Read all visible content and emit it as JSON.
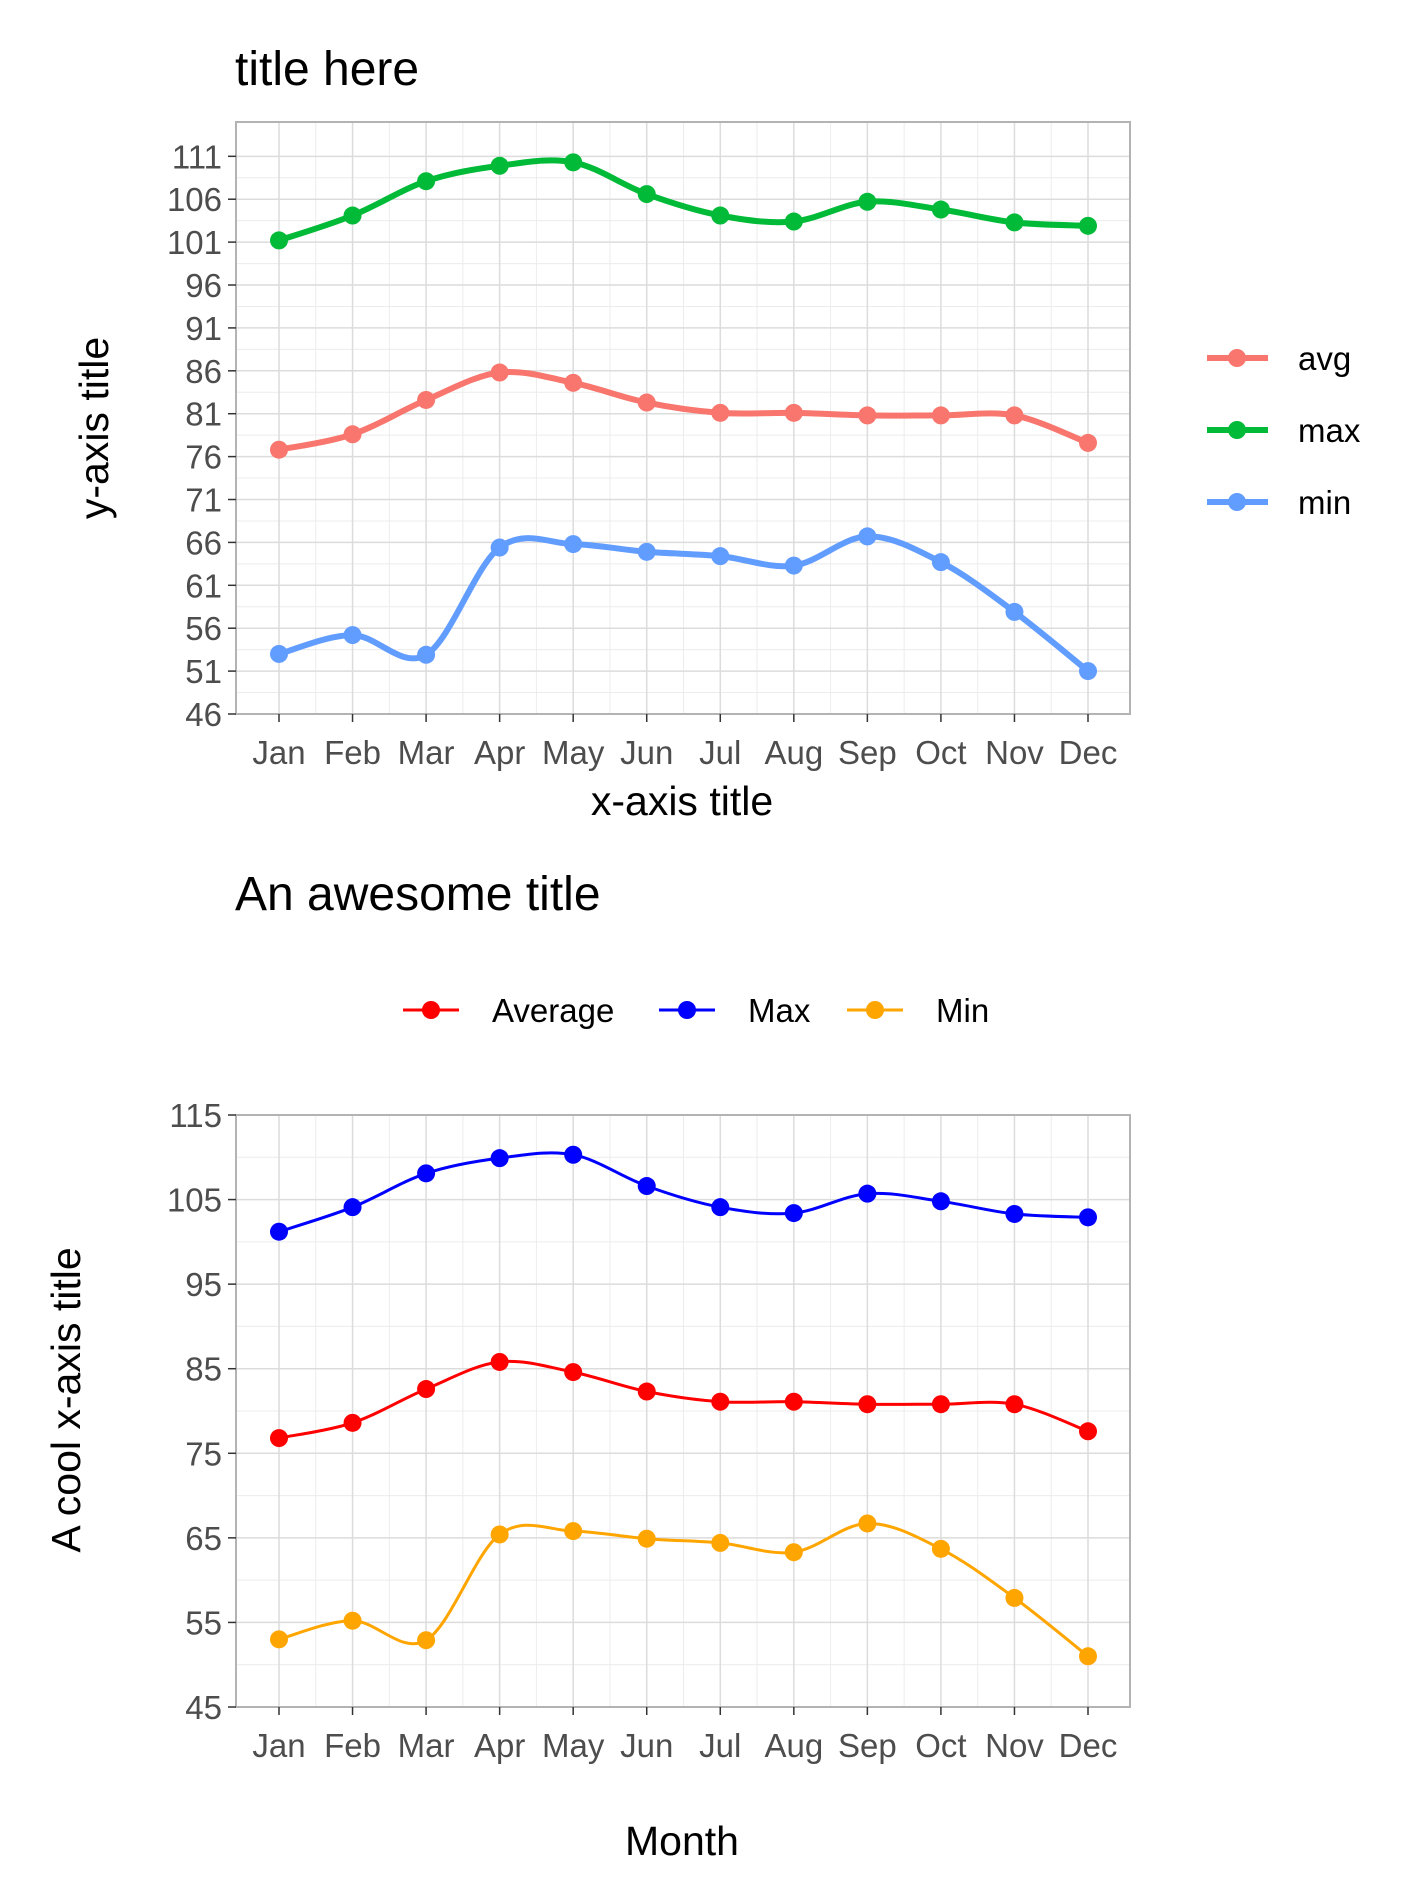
{
  "chart_data": [
    {
      "type": "line",
      "title": "title here",
      "xlabel": "x-axis title",
      "ylabel": "y-axis title",
      "categories": [
        "Jan",
        "Feb",
        "Mar",
        "Apr",
        "May",
        "Jun",
        "Jul",
        "Aug",
        "Sep",
        "Oct",
        "Nov",
        "Dec"
      ],
      "ylim": [
        46,
        115
      ],
      "yticks": [
        "46",
        "51",
        "56",
        "61",
        "66",
        "71",
        "76",
        "81",
        "86",
        "91",
        "96",
        "101",
        "106",
        "111"
      ],
      "ytick_values": [
        46,
        51,
        56,
        61,
        66,
        71,
        76,
        81,
        86,
        91,
        96,
        101,
        106,
        111
      ],
      "grid": true,
      "legend_position": "right",
      "series": [
        {
          "name": "avg",
          "color": "#F8766D",
          "values": [
            76.8,
            78.6,
            82.6,
            85.8,
            84.6,
            82.3,
            81.1,
            81.1,
            80.8,
            80.8,
            80.8,
            77.6
          ]
        },
        {
          "name": "max",
          "color": "#00BA38",
          "values": [
            101.2,
            104.1,
            108.1,
            109.9,
            110.3,
            106.6,
            104.1,
            103.4,
            105.7,
            104.8,
            103.3,
            102.9
          ]
        },
        {
          "name": "min",
          "color": "#619CFF",
          "values": [
            53.0,
            55.2,
            52.9,
            65.4,
            65.8,
            64.9,
            64.4,
            63.3,
            66.7,
            63.7,
            57.9,
            51.0
          ]
        }
      ]
    },
    {
      "type": "line",
      "title": "An awesome title",
      "xlabel": "Month",
      "ylabel": "A cool x-axis title",
      "categories": [
        "Jan",
        "Feb",
        "Mar",
        "Apr",
        "May",
        "Jun",
        "Jul",
        "Aug",
        "Sep",
        "Oct",
        "Nov",
        "Dec"
      ],
      "ylim": [
        45,
        115
      ],
      "yticks": [
        "45",
        "55",
        "65",
        "75",
        "85",
        "95",
        "105",
        "115"
      ],
      "ytick_values": [
        45,
        55,
        65,
        75,
        85,
        95,
        105,
        115
      ],
      "grid": true,
      "legend_position": "top",
      "series": [
        {
          "name": "Average",
          "color": "#FF0000",
          "values": [
            76.8,
            78.6,
            82.6,
            85.8,
            84.6,
            82.3,
            81.1,
            81.1,
            80.8,
            80.8,
            80.8,
            77.6
          ]
        },
        {
          "name": "Max",
          "color": "#0000FF",
          "values": [
            101.2,
            104.1,
            108.1,
            109.9,
            110.3,
            106.6,
            104.1,
            103.4,
            105.7,
            104.8,
            103.3,
            102.9
          ]
        },
        {
          "name": "Min",
          "color": "#FFA500",
          "values": [
            53.0,
            55.2,
            52.9,
            65.4,
            65.8,
            64.9,
            64.4,
            63.3,
            66.7,
            63.7,
            57.9,
            51.0
          ]
        }
      ]
    }
  ]
}
